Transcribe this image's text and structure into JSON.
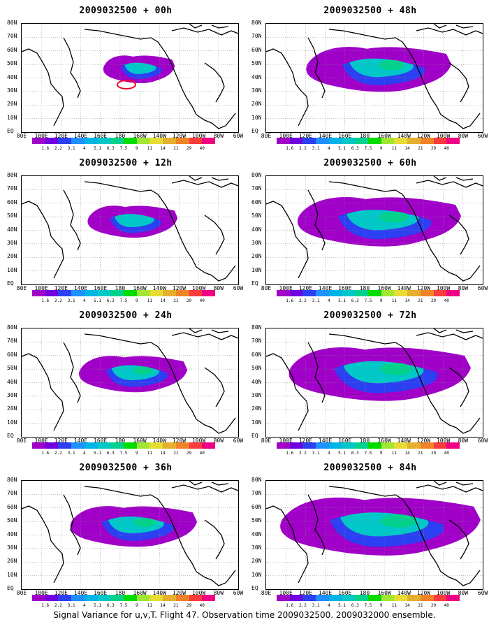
{
  "panels": [
    {
      "title": "2009032500 + 00h",
      "level": 0
    },
    {
      "title": "2009032500 + 48h",
      "level": 4
    },
    {
      "title": "2009032500 + 12h",
      "level": 1
    },
    {
      "title": "2009032500 + 60h",
      "level": 5
    },
    {
      "title": "2009032500 + 24h",
      "level": 2
    },
    {
      "title": "2009032500 + 72h",
      "level": 6
    },
    {
      "title": "2009032500 + 36h",
      "level": 3
    },
    {
      "title": "2009032500 + 84h",
      "level": 7
    }
  ],
  "lat_labels": [
    "80N",
    "70N",
    "60N",
    "50N",
    "40N",
    "30N",
    "20N",
    "10N",
    "EQ"
  ],
  "lon_labels": [
    "80E",
    "100E",
    "120E",
    "140E",
    "160E",
    "180",
    "160W",
    "140W",
    "120W",
    "100W",
    "80W",
    "60W"
  ],
  "colorbar": {
    "labels": [
      "1.6",
      "2.2",
      "3.1",
      "4",
      "5.1",
      "6.3",
      "7.5",
      "9",
      "11",
      "14",
      "21",
      "29",
      "40"
    ],
    "colors": [
      "#a000c8",
      "#7000e0",
      "#2c3ff2",
      "#1e90ff",
      "#00b4e6",
      "#00c8c8",
      "#00d28c",
      "#00dc00",
      "#a0e632",
      "#e6dc32",
      "#e6af2d",
      "#f08228",
      "#fa3c3c",
      "#f00082"
    ]
  },
  "caption": "Signal Variance for u,v,T. Flight 47. Observation time 2009032500. 2009032000 ensemble."
}
